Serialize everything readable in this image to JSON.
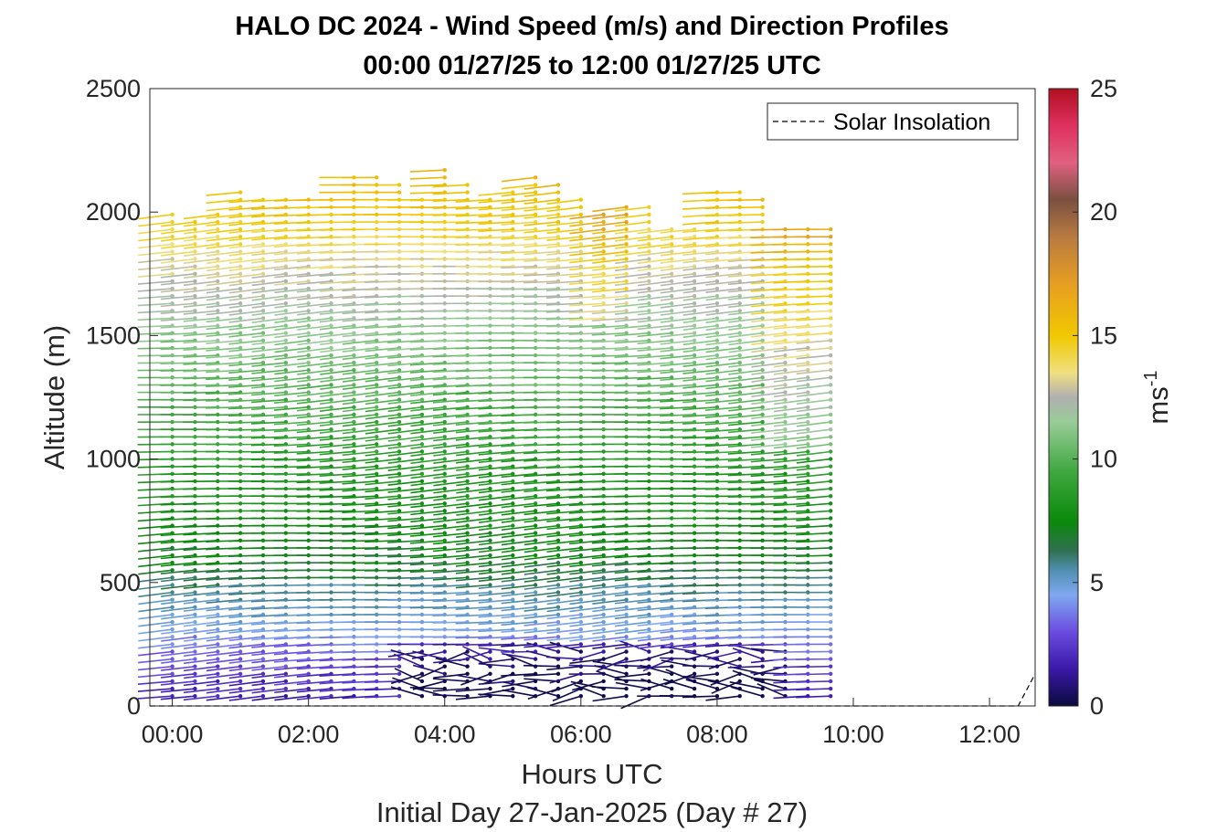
{
  "chart_data": {
    "type": "scatter",
    "title": "HALO DC 2024 - Wind Speed (m/s) and Direction Profiles",
    "subtitle": "00:00 01/27/25 to 12:00 01/27/25  UTC",
    "xlabel": "Hours UTC",
    "xlabel2": "Initial Day 27-Jan-2025 (Day # 27)",
    "ylabel": "Altitude (m)",
    "xlim": [
      -0.33,
      12.67
    ],
    "ylim": [
      0,
      2500
    ],
    "x_ticks": [
      0,
      2,
      4,
      6,
      8,
      10,
      12
    ],
    "x_tick_labels": [
      "00:00",
      "02:00",
      "04:00",
      "06:00",
      "08:00",
      "10:00",
      "12:00"
    ],
    "y_ticks": [
      0,
      500,
      1000,
      1500,
      2000,
      2500
    ],
    "y_tick_labels": [
      "0",
      "500",
      "1000",
      "1500",
      "2000",
      "2500"
    ],
    "legend": {
      "label": "Solar Insolation",
      "location": "top-right"
    },
    "colorbar": {
      "label": "ms-1",
      "label_base": "ms",
      "label_exp": "-1",
      "range": [
        0,
        25
      ],
      "ticks": [
        0,
        5,
        10,
        15,
        20,
        25
      ],
      "tick_labels": [
        "0",
        "5",
        "10",
        "15",
        "20",
        "25"
      ],
      "stops": [
        {
          "v": 0,
          "c": "#0a0a3c"
        },
        {
          "v": 1.5,
          "c": "#3a18a8"
        },
        {
          "v": 3,
          "c": "#6a4ce0"
        },
        {
          "v": 4.5,
          "c": "#7fa8f0"
        },
        {
          "v": 5.5,
          "c": "#4f8fb0"
        },
        {
          "v": 6.3,
          "c": "#2f7050"
        },
        {
          "v": 7.5,
          "c": "#0a8a0a"
        },
        {
          "v": 9.5,
          "c": "#40a840"
        },
        {
          "v": 11.5,
          "c": "#98cc98"
        },
        {
          "v": 12.5,
          "c": "#b0b0b0"
        },
        {
          "v": 13.5,
          "c": "#f0e080"
        },
        {
          "v": 15,
          "c": "#f0c800"
        },
        {
          "v": 17,
          "c": "#e8a020"
        },
        {
          "v": 19,
          "c": "#b87a40"
        },
        {
          "v": 20.5,
          "c": "#7a5040"
        },
        {
          "v": 22,
          "c": "#e06080"
        },
        {
          "v": 23.5,
          "c": "#e03060"
        },
        {
          "v": 25,
          "c": "#b01020"
        }
      ]
    },
    "profile_times_hours": [
      0,
      0.333,
      0.667,
      1.0,
      1.333,
      1.667,
      2.0,
      2.333,
      2.667,
      3.0,
      3.333,
      3.667,
      4.0,
      4.333,
      4.667,
      5.0,
      5.333,
      5.667,
      6.0,
      6.333,
      6.667,
      7.0,
      7.333,
      7.667,
      8.0,
      8.333,
      8.667,
      9.0,
      9.333,
      9.667
    ],
    "altitude_step_m": 30,
    "altitude_min_m": 40,
    "max_altitude_m": [
      2000,
      1980,
      2010,
      2080,
      2050,
      2070,
      2050,
      2070,
      2160,
      2160,
      2110,
      2060,
      2170,
      2110,
      2050,
      2080,
      2160,
      2120,
      2050,
      1990,
      2030,
      2040,
      1950,
      1940,
      2080,
      2080,
      2060,
      1950,
      1950,
      1950
    ],
    "speed_profile_mps": [
      {
        "alt": 0,
        "speed": 1.5
      },
      {
        "alt": 150,
        "speed": 2.5
      },
      {
        "alt": 300,
        "speed": 4.3
      },
      {
        "alt": 450,
        "speed": 5.6
      },
      {
        "alt": 600,
        "speed": 7.2
      },
      {
        "alt": 900,
        "speed": 8.2
      },
      {
        "alt": 1200,
        "speed": 9.6
      },
      {
        "alt": 1500,
        "speed": 11.2
      },
      {
        "alt": 1750,
        "speed": 12.8
      },
      {
        "alt": 1950,
        "speed": 14.8
      },
      {
        "alt": 2100,
        "speed": 15.5
      }
    ],
    "solar_insolation": [
      {
        "x": -0.33,
        "y": 0
      },
      {
        "x": 12.42,
        "y": 0
      },
      {
        "x": 12.67,
        "y": 130
      }
    ]
  }
}
